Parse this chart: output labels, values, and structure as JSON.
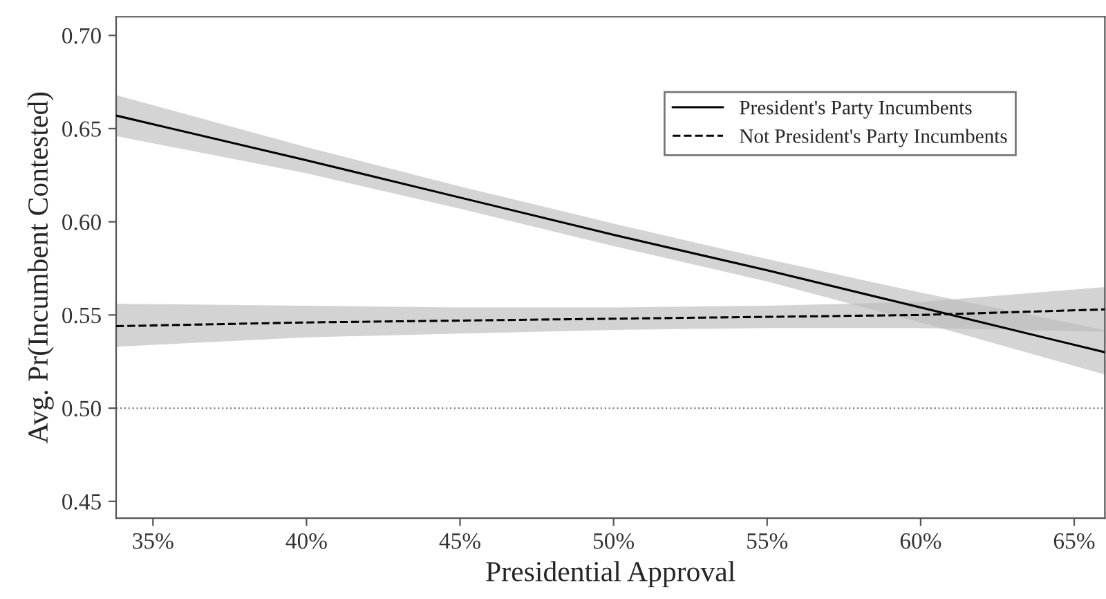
{
  "chart_data": {
    "type": "line",
    "xlabel": "Presidential Approval",
    "ylabel": "Avg. Pr(Incumbent Contested)",
    "xlim": [
      33.8,
      66
    ],
    "ylim": [
      0.441,
      0.71
    ],
    "xticks": [
      {
        "value": 35,
        "label": "35%"
      },
      {
        "value": 40,
        "label": "40%"
      },
      {
        "value": 45,
        "label": "45%"
      },
      {
        "value": 50,
        "label": "50%"
      },
      {
        "value": 55,
        "label": "55%"
      },
      {
        "value": 60,
        "label": "60%"
      },
      {
        "value": 65,
        "label": "65%"
      }
    ],
    "yticks": [
      {
        "value": 0.45,
        "label": "0.45"
      },
      {
        "value": 0.5,
        "label": "0.50"
      },
      {
        "value": 0.55,
        "label": "0.55"
      },
      {
        "value": 0.6,
        "label": "0.60"
      },
      {
        "value": 0.65,
        "label": "0.65"
      },
      {
        "value": 0.7,
        "label": "0.70"
      }
    ],
    "x": [
      33.8,
      40,
      45,
      50,
      55,
      60,
      66
    ],
    "series": [
      {
        "name": "President's Party Incumbents",
        "color": "#000000",
        "line_style": "solid",
        "values": [
          0.657,
          0.633,
          0.613,
          0.593,
          0.574,
          0.554,
          0.53
        ],
        "lower": [
          0.646,
          0.626,
          0.607,
          0.587,
          0.568,
          0.546,
          0.518
        ],
        "upper": [
          0.668,
          0.64,
          0.619,
          0.599,
          0.58,
          0.562,
          0.542
        ]
      },
      {
        "name": "Not President's Party Incumbents",
        "color": "#000000",
        "line_style": "dashed",
        "values": [
          0.544,
          0.546,
          0.547,
          0.548,
          0.549,
          0.55,
          0.553
        ],
        "lower": [
          0.533,
          0.538,
          0.54,
          0.542,
          0.543,
          0.543,
          0.541
        ],
        "upper": [
          0.556,
          0.555,
          0.554,
          0.554,
          0.555,
          0.557,
          0.565
        ]
      }
    ],
    "ref_lines": [
      {
        "axis": "y",
        "value": 0.5,
        "color": "#808080",
        "line_style": "dotted"
      }
    ],
    "legend": "top right",
    "grid": false
  }
}
